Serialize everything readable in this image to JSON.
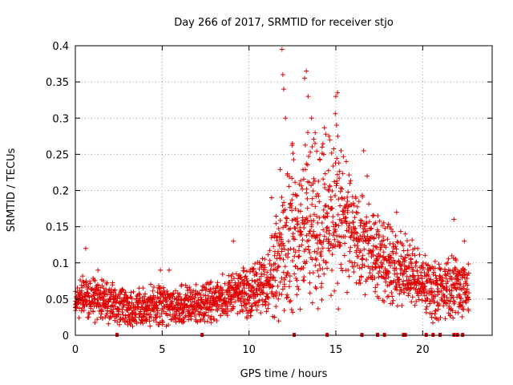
{
  "chart_data": {
    "type": "scatter",
    "title": "Day 266 of 2017, SRMTID for receiver stjo",
    "xlabel": "GPS time / hours",
    "ylabel": "SRMTID / TECUs",
    "xlim": [
      0,
      24
    ],
    "ylim": [
      0,
      0.4
    ],
    "x_ticks": [
      0,
      5,
      10,
      15,
      20
    ],
    "x_tick_labels": [
      "0",
      "5",
      "10",
      "15",
      "20"
    ],
    "y_ticks": [
      0,
      0.05,
      0.1,
      0.15,
      0.2,
      0.25,
      0.3,
      0.35,
      0.4
    ],
    "y_tick_labels": [
      "0",
      "0.05",
      "0.1",
      "0.15",
      "0.2",
      "0.25",
      "0.3",
      "0.35",
      "0.4"
    ],
    "grid": true,
    "marker": "plus",
    "marker_color": "#e00000",
    "series_profile": {
      "sample_step_hours": 0.05,
      "points_per_step": 5,
      "x_range": [
        0,
        22.7
      ],
      "baseline": [
        [
          0,
          0.055
        ],
        [
          1,
          0.05
        ],
        [
          2,
          0.045
        ],
        [
          3,
          0.04
        ],
        [
          4,
          0.038
        ],
        [
          5,
          0.042
        ],
        [
          6,
          0.04
        ],
        [
          7,
          0.042
        ],
        [
          8,
          0.048
        ],
        [
          9,
          0.058
        ],
        [
          10,
          0.06
        ],
        [
          11,
          0.07
        ],
        [
          11.5,
          0.09
        ],
        [
          12,
          0.14
        ],
        [
          13,
          0.155
        ],
        [
          14,
          0.16
        ],
        [
          15,
          0.165
        ],
        [
          16,
          0.14
        ],
        [
          17,
          0.115
        ],
        [
          18,
          0.1
        ],
        [
          19,
          0.09
        ],
        [
          20,
          0.07
        ],
        [
          21,
          0.06
        ],
        [
          22,
          0.07
        ],
        [
          22.7,
          0.06
        ]
      ],
      "spread": [
        [
          0,
          0.02
        ],
        [
          9,
          0.02
        ],
        [
          11,
          0.03
        ],
        [
          12,
          0.08
        ],
        [
          15,
          0.09
        ],
        [
          16,
          0.05
        ],
        [
          18,
          0.04
        ],
        [
          20,
          0.03
        ],
        [
          22.7,
          0.03
        ]
      ],
      "spikes": [
        [
          0.6,
          0.12
        ],
        [
          1.3,
          0.09
        ],
        [
          4.9,
          0.09
        ],
        [
          5.4,
          0.09
        ],
        [
          9.1,
          0.13
        ],
        [
          11.3,
          0.19
        ],
        [
          11.9,
          0.395
        ],
        [
          11.95,
          0.36
        ],
        [
          12.0,
          0.34
        ],
        [
          12.1,
          0.3
        ],
        [
          12.5,
          0.265
        ],
        [
          13.2,
          0.355
        ],
        [
          13.3,
          0.365
        ],
        [
          13.4,
          0.33
        ],
        [
          13.6,
          0.3
        ],
        [
          13.8,
          0.265
        ],
        [
          14.3,
          0.25
        ],
        [
          14.6,
          0.275
        ],
        [
          15.0,
          0.33
        ],
        [
          15.1,
          0.335
        ],
        [
          15.3,
          0.255
        ],
        [
          15.6,
          0.24
        ],
        [
          16.6,
          0.255
        ],
        [
          16.8,
          0.22
        ],
        [
          18.5,
          0.17
        ],
        [
          19.0,
          0.14
        ],
        [
          21.8,
          0.16
        ],
        [
          22.4,
          0.13
        ]
      ]
    },
    "gap_markers_x": [
      2.4,
      7.3,
      12.6,
      14.5,
      16.5,
      17.4,
      17.8,
      18.9,
      19.0,
      20.2,
      20.6,
      21.0,
      21.8,
      22.0,
      22.3
    ]
  }
}
